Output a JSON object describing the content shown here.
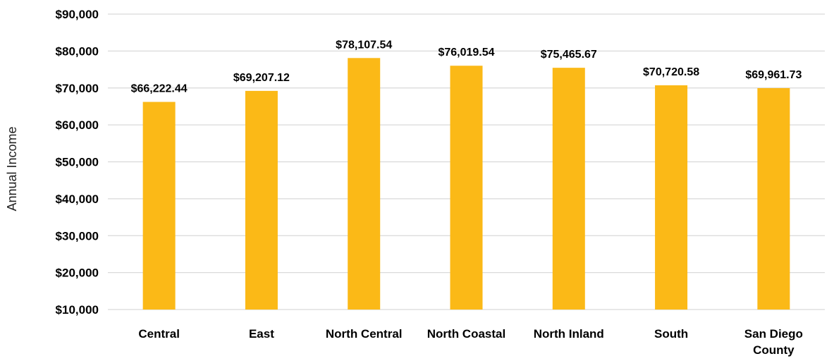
{
  "chart_data": {
    "type": "bar",
    "title": "",
    "xlabel": "",
    "ylabel": "Annual Income",
    "categories": [
      [
        "Central"
      ],
      [
        "East"
      ],
      [
        "North Central"
      ],
      [
        "North Coastal"
      ],
      [
        "North Inland"
      ],
      [
        "South"
      ],
      [
        "San Diego",
        "County"
      ]
    ],
    "values": [
      66222.44,
      69207.12,
      78107.54,
      76019.54,
      75465.67,
      70720.58,
      69961.73
    ],
    "data_labels": [
      "$66,222.44",
      "$69,207.12",
      "$78,107.54",
      "$76,019.54",
      "$75,465.67",
      "$70,720.58",
      "$69,961.73"
    ],
    "ylim": [
      10000,
      90000
    ],
    "yticks": [
      10000,
      20000,
      30000,
      40000,
      50000,
      60000,
      70000,
      80000,
      90000
    ],
    "ytick_labels": [
      "$10,000",
      "$20,000",
      "$30,000",
      "$40,000",
      "$50,000",
      "$60,000",
      "$70,000",
      "$80,000",
      "$90,000"
    ],
    "grid": true,
    "legend": "none",
    "bar_color": "#fbb917",
    "grid_color": "#d9d9d9"
  }
}
